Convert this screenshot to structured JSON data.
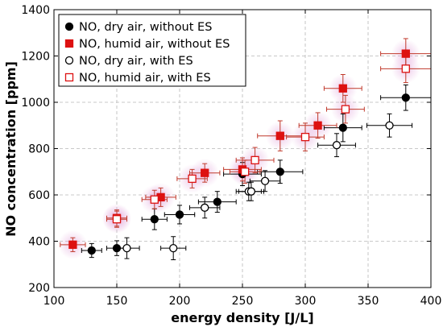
{
  "chart_data": {
    "type": "scatter",
    "xlabel": "energy density [J/L]",
    "ylabel": "NO concentration [ppm]",
    "xlim": [
      100,
      400
    ],
    "ylim": [
      200,
      1400
    ],
    "xticks": [
      100,
      150,
      200,
      250,
      300,
      350,
      400
    ],
    "yticks": [
      200,
      400,
      600,
      800,
      1000,
      1200,
      1400
    ],
    "grid": true,
    "legend_position": "top-left",
    "series": [
      {
        "name": "NO, dry air, without ES",
        "marker": "circle",
        "filled": true,
        "color": "#000000",
        "points": [
          {
            "x": 130,
            "y": 360,
            "xerr": 8,
            "yerr": 30
          },
          {
            "x": 150,
            "y": 370,
            "xerr": 8,
            "yerr": 32
          },
          {
            "x": 180,
            "y": 495,
            "xerr": 10,
            "yerr": 45
          },
          {
            "x": 200,
            "y": 515,
            "xerr": 12,
            "yerr": 40
          },
          {
            "x": 230,
            "y": 570,
            "xerr": 15,
            "yerr": 45
          },
          {
            "x": 250,
            "y": 690,
            "xerr": 15,
            "yerr": 50
          },
          {
            "x": 280,
            "y": 700,
            "xerr": 18,
            "yerr": 50
          },
          {
            "x": 330,
            "y": 890,
            "xerr": 15,
            "yerr": 60
          },
          {
            "x": 380,
            "y": 1020,
            "xerr": 20,
            "yerr": 55
          }
        ]
      },
      {
        "name": "NO, humid air, without ES",
        "marker": "square",
        "filled": true,
        "color": "#dd1111",
        "points": [
          {
            "x": 115,
            "y": 385,
            "xerr": 10,
            "yerr": 30
          },
          {
            "x": 150,
            "y": 500,
            "xerr": 8,
            "yerr": 35
          },
          {
            "x": 185,
            "y": 590,
            "xerr": 12,
            "yerr": 40
          },
          {
            "x": 220,
            "y": 695,
            "xerr": 12,
            "yerr": 40
          },
          {
            "x": 250,
            "y": 710,
            "xerr": 15,
            "yerr": 50
          },
          {
            "x": 280,
            "y": 855,
            "xerr": 18,
            "yerr": 65
          },
          {
            "x": 310,
            "y": 900,
            "xerr": 15,
            "yerr": 55
          },
          {
            "x": 330,
            "y": 1060,
            "xerr": 15,
            "yerr": 60
          },
          {
            "x": 380,
            "y": 1210,
            "xerr": 20,
            "yerr": 65
          }
        ]
      },
      {
        "name": "NO, dry air, with ES",
        "marker": "circle",
        "filled": false,
        "color": "#000000",
        "points": [
          {
            "x": 158,
            "y": 370,
            "xerr": 10,
            "yerr": 45
          },
          {
            "x": 195,
            "y": 370,
            "xerr": 10,
            "yerr": 50
          },
          {
            "x": 220,
            "y": 545,
            "xerr": 12,
            "yerr": 45
          },
          {
            "x": 255,
            "y": 615,
            "xerr": 10,
            "yerr": 40
          },
          {
            "x": 257,
            "y": 615,
            "xerr": 10,
            "yerr": 40
          },
          {
            "x": 268,
            "y": 660,
            "xerr": 12,
            "yerr": 45
          },
          {
            "x": 325,
            "y": 815,
            "xerr": 15,
            "yerr": 50
          },
          {
            "x": 367,
            "y": 900,
            "xerr": 18,
            "yerr": 50
          }
        ]
      },
      {
        "name": "NO, humid air, with ES",
        "marker": "square",
        "filled": false,
        "color": "#dd1111",
        "points": [
          {
            "x": 150,
            "y": 495,
            "xerr": 8,
            "yerr": 35
          },
          {
            "x": 180,
            "y": 580,
            "xerr": 10,
            "yerr": 40
          },
          {
            "x": 210,
            "y": 670,
            "xerr": 12,
            "yerr": 40
          },
          {
            "x": 252,
            "y": 700,
            "xerr": 12,
            "yerr": 50
          },
          {
            "x": 260,
            "y": 750,
            "xerr": 15,
            "yerr": 55
          },
          {
            "x": 300,
            "y": 850,
            "xerr": 15,
            "yerr": 60
          },
          {
            "x": 332,
            "y": 970,
            "xerr": 15,
            "yerr": 60
          },
          {
            "x": 380,
            "y": 1145,
            "xerr": 20,
            "yerr": 60
          }
        ]
      }
    ]
  }
}
